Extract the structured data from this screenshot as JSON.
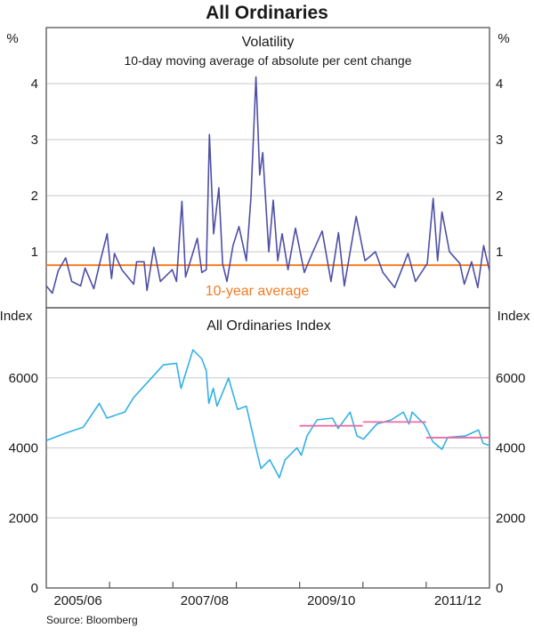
{
  "title": "All Ordinaries",
  "source": "Source: Bloomberg",
  "colors": {
    "volatility": "#4f4fa6",
    "average": "#f47b20",
    "index": "#33b1e6",
    "fy_average": "#ef6aa6",
    "grid": "#d4d4d4",
    "axis": "#555555"
  },
  "x_axis": {
    "domain": [
      "2005-07-01",
      "2012-06-30"
    ],
    "tick_dates": [
      "2006-07-01",
      "2007-07-01",
      "2008-07-01",
      "2009-07-01",
      "2010-07-01",
      "2011-07-01"
    ],
    "labels": [
      {
        "text": "2005/06",
        "from": "2005-07-01",
        "to": "2006-07-01"
      },
      {
        "text": "2007/08",
        "from": "2007-07-01",
        "to": "2008-07-01"
      },
      {
        "text": "2009/10",
        "from": "2009-07-01",
        "to": "2010-07-01"
      },
      {
        "text": "2011/12",
        "from": "2011-07-01",
        "to": "2012-07-01"
      }
    ]
  },
  "chart_data": [
    {
      "type": "line",
      "title": "Volatility",
      "subtitle": "10-day moving average of absolute per cent change",
      "ylabel": "%",
      "ylim": [
        0,
        5
      ],
      "yticks": [
        1,
        2,
        3,
        4
      ],
      "grid": true,
      "series": [
        {
          "x": [
            "2005-07-01",
            "2005-08-05",
            "2005-09-08",
            "2005-10-21",
            "2005-11-25",
            "2006-01-15",
            "2006-02-10",
            "2006-04-01",
            "2006-05-05",
            "2006-06-17",
            "2006-07-12",
            "2006-07-29",
            "2006-09-10",
            "2006-11-17",
            "2006-12-04",
            "2007-01-16",
            "2007-02-02",
            "2007-03-13",
            "2007-04-20",
            "2007-06-27",
            "2007-07-22",
            "2007-08-22",
            "2007-09-12",
            "2007-11-19",
            "2007-12-15",
            "2008-01-10",
            "2008-01-28",
            "2008-02-21",
            "2008-03-22",
            "2008-04-13",
            "2008-05-08",
            "2008-06-12",
            "2008-07-16",
            "2008-08-28",
            "2008-09-23",
            "2008-10-22",
            "2008-11-13",
            "2008-11-30",
            "2009-01-04",
            "2009-01-30",
            "2009-02-25",
            "2009-03-22",
            "2009-04-25",
            "2009-06-07",
            "2009-07-28",
            "2009-09-09",
            "2009-11-08",
            "2009-12-29",
            "2010-02-10",
            "2010-03-16",
            "2010-05-23",
            "2010-07-13",
            "2010-09-11",
            "2010-10-24",
            "2010-12-31",
            "2011-03-18",
            "2011-04-30",
            "2011-07-07",
            "2011-08-10",
            "2011-09-05",
            "2011-09-30",
            "2011-11-12",
            "2012-01-11",
            "2012-02-06",
            "2012-03-19",
            "2012-04-23",
            "2012-05-27",
            "2012-06-30"
          ],
          "y": [
            0.39,
            0.26,
            0.66,
            0.89,
            0.47,
            0.39,
            0.71,
            0.34,
            0.79,
            1.32,
            0.52,
            0.97,
            0.68,
            0.42,
            0.82,
            0.82,
            0.31,
            1.08,
            0.47,
            0.68,
            0.47,
            1.9,
            0.55,
            1.24,
            0.63,
            0.68,
            3.09,
            1.32,
            2.14,
            0.79,
            0.47,
            1.11,
            1.45,
            0.84,
            1.95,
            4.12,
            2.37,
            2.77,
            1.0,
            1.92,
            0.84,
            1.32,
            0.68,
            1.42,
            0.63,
            0.95,
            1.37,
            0.47,
            1.34,
            0.39,
            1.63,
            0.84,
            1.0,
            0.63,
            0.36,
            0.97,
            0.47,
            0.79,
            1.95,
            0.84,
            1.71,
            1.0,
            0.79,
            0.42,
            0.82,
            0.36,
            1.11,
            0.66
          ]
        }
      ],
      "reference_line": {
        "label": "10-year average",
        "value": 0.76
      }
    },
    {
      "type": "line",
      "title": "All Ordinaries Index",
      "ylabel": "Index",
      "ylim": [
        0,
        8000
      ],
      "yticks": [
        0,
        2000,
        4000,
        6000
      ],
      "grid": true,
      "series": [
        {
          "x": [
            "2005-07-01",
            "2005-10-20",
            "2006-01-30",
            "2006-05-03",
            "2006-06-16",
            "2006-09-26",
            "2006-11-17",
            "2007-02-27",
            "2007-05-07",
            "2007-07-22",
            "2007-08-17",
            "2007-10-25",
            "2007-12-15",
            "2008-01-10",
            "2008-01-24",
            "2008-02-19",
            "2008-03-12",
            "2008-05-17",
            "2008-07-08",
            "2008-08-28",
            "2008-10-18",
            "2008-11-20",
            "2009-01-10",
            "2009-03-06",
            "2009-04-08",
            "2009-06-16",
            "2009-07-11",
            "2009-08-13",
            "2009-10-10",
            "2010-01-06",
            "2010-02-08",
            "2010-04-18",
            "2010-05-28",
            "2010-07-04",
            "2010-09-19",
            "2010-12-12",
            "2011-02-19",
            "2011-03-24",
            "2011-04-11",
            "2011-06-19",
            "2011-08-09",
            "2011-09-30",
            "2011-11-02",
            "2012-02-12",
            "2012-04-28",
            "2012-05-24",
            "2012-06-30"
          ],
          "y": [
            4210,
            4420,
            4590,
            5270,
            4850,
            5020,
            5440,
            5990,
            6370,
            6415,
            5700,
            6800,
            6540,
            6200,
            5270,
            5700,
            5190,
            5990,
            5100,
            5190,
            4085,
            3410,
            3660,
            3150,
            3660,
            4000,
            3790,
            4340,
            4800,
            4850,
            4550,
            5020,
            4340,
            4250,
            4680,
            4800,
            5020,
            4680,
            5020,
            4680,
            4170,
            3960,
            4300,
            4340,
            4510,
            4130,
            4070
          ]
        }
      ],
      "period_averages": [
        {
          "from": "2009-07-01",
          "to": "2010-06-30",
          "value": 4630
        },
        {
          "from": "2010-07-01",
          "to": "2011-06-30",
          "value": 4740
        },
        {
          "from": "2011-07-01",
          "to": "2012-06-30",
          "value": 4290
        }
      ]
    }
  ]
}
